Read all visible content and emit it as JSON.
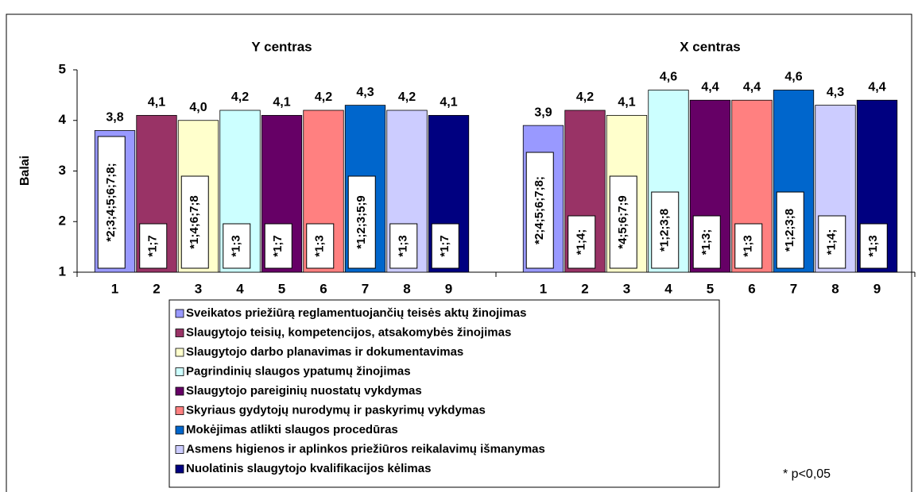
{
  "chart_data": {
    "type": "bar",
    "ylabel": "Balai",
    "categories": [
      "Y centras",
      "X centras"
    ],
    "ylim": [
      1,
      5
    ],
    "yticks": [
      1,
      2,
      3,
      4,
      5
    ],
    "note": "* p<0,05",
    "series": [
      {
        "name": "Sveikatos priežiūrą reglamentuojančių teisės aktų žinojimas",
        "number": "1",
        "color": "#9999ff",
        "values": [
          3.8,
          3.9
        ],
        "value_labels": [
          "3,8",
          "3,9"
        ],
        "annotations": [
          "*2;3;4;5;6;7;8;",
          "*2;4;5;6;7;8;"
        ]
      },
      {
        "name": "Slaugytojo teisių, kompetencijos, atsakomybės žinojimas",
        "number": "2",
        "color": "#993366",
        "values": [
          4.1,
          4.2
        ],
        "value_labels": [
          "4,1",
          "4,2"
        ],
        "annotations": [
          "*1;7",
          "*1;4;"
        ]
      },
      {
        "name": "Slaugytojo darbo planavimas ir dokumentavimas",
        "number": "3",
        "color": "#ffffcc",
        "values": [
          4.0,
          4.1
        ],
        "value_labels": [
          "4,0",
          "4,1"
        ],
        "annotations": [
          "*1;4;6;7;8",
          "*4;5;6;7;9"
        ]
      },
      {
        "name": "Pagrindinių slaugos ypatumų žinojimas",
        "number": "4",
        "color": "#ccffff",
        "values": [
          4.2,
          4.6
        ],
        "value_labels": [
          "4,2",
          "4,6"
        ],
        "annotations": [
          "*1;3",
          "*1;2;3;8"
        ]
      },
      {
        "name": "Slaugytojo pareiginių nuostatų vykdymas",
        "number": "5",
        "color": "#660066",
        "values": [
          4.1,
          4.4
        ],
        "value_labels": [
          "4,1",
          "4,4"
        ],
        "annotations": [
          "*1;7",
          "*1;3;"
        ]
      },
      {
        "name": "Skyriaus gydytojų nurodymų ir paskyrimų vykdymas",
        "number": "6",
        "color": "#ff8080",
        "values": [
          4.2,
          4.4
        ],
        "value_labels": [
          "4,2",
          "4,4"
        ],
        "annotations": [
          "*1;3",
          "*1;3"
        ]
      },
      {
        "name": "Mokėjimas atlikti slaugos procedūras",
        "number": "7",
        "color": "#0066cc",
        "values": [
          4.3,
          4.6
        ],
        "value_labels": [
          "4,3",
          "4,6"
        ],
        "annotations": [
          "*1;2;3;5;9",
          "*1;2;3;8"
        ]
      },
      {
        "name": "Asmens higienos ir aplinkos priežiūros reikalavimų išmanymas",
        "number": "8",
        "color": "#ccccff",
        "values": [
          4.2,
          4.3
        ],
        "value_labels": [
          "4,2",
          "4,3"
        ],
        "annotations": [
          "*1;3",
          "*1;4;"
        ]
      },
      {
        "name": "Nuolatinis slaugytojo kvalifikacijos kėlimas",
        "number": "9",
        "color": "#000080",
        "values": [
          4.1,
          4.4
        ],
        "value_labels": [
          "4,1",
          "4,4"
        ],
        "annotations": [
          "*1;7",
          "*1;3"
        ]
      }
    ]
  }
}
